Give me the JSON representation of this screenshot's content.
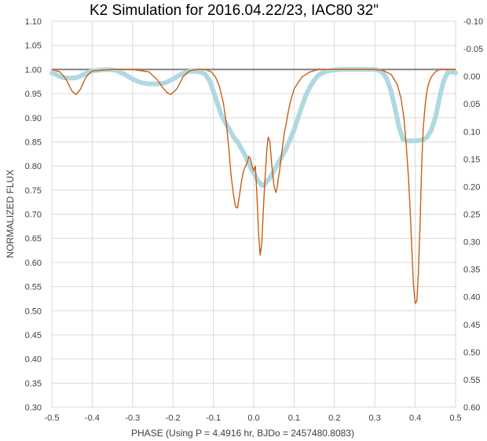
{
  "chart_data": {
    "type": "line",
    "title": "K2 Simulation for 2016.04.22/23, IAC80 32\"",
    "xlabel": "PHASE (Using P = 4.4916 hr, BJDo = 2457480.8083)",
    "ylabel": "NORMALIZED FLUX",
    "xlim": [
      -0.5,
      0.5
    ],
    "ylim": [
      0.3,
      1.1
    ],
    "y2lim": [
      0.6,
      -0.1
    ],
    "grid": true,
    "x_ticks": [
      "-0.5",
      "-0.4",
      "-0.3",
      "-0.2",
      "-0.1",
      "0.0",
      "0.1",
      "0.2",
      "0.3",
      "0.4",
      "0.5"
    ],
    "y_ticks": [
      "1.10",
      "1.05",
      "1.00",
      "0.95",
      "0.90",
      "0.85",
      "0.80",
      "0.75",
      "0.70",
      "0.65",
      "0.60",
      "0.55",
      "0.50",
      "0.45",
      "0.40",
      "0.35",
      "0.30"
    ],
    "y2_ticks": [
      "-0.10",
      "-0.05",
      "0.00",
      "0.05",
      "0.10",
      "0.15",
      "0.20",
      "0.25",
      "0.30",
      "0.35",
      "0.40",
      "0.45",
      "0.50",
      "0.55",
      "0.60"
    ],
    "series": [
      {
        "color": "#c55a11",
        "x": [
          -0.5,
          -0.48,
          -0.465,
          -0.45,
          -0.44,
          -0.43,
          -0.415,
          -0.4,
          -0.35,
          -0.3,
          -0.26,
          -0.24,
          -0.225,
          -0.215,
          -0.205,
          -0.19,
          -0.175,
          -0.16,
          -0.14,
          -0.12,
          -0.105,
          -0.095,
          -0.085,
          -0.075,
          -0.068,
          -0.062,
          -0.056,
          -0.05,
          -0.045,
          -0.04,
          -0.035,
          -0.03,
          -0.025,
          -0.02,
          -0.015,
          -0.012,
          -0.008,
          -0.004,
          0.0,
          0.004,
          0.008,
          0.012,
          0.016,
          0.02,
          0.024,
          0.027,
          0.03,
          0.033,
          0.036,
          0.04,
          0.045,
          0.05,
          0.055,
          0.058,
          0.061,
          0.064,
          0.067,
          0.07,
          0.073,
          0.076,
          0.08,
          0.085,
          0.09,
          0.1,
          0.12,
          0.14,
          0.16,
          0.18,
          0.2,
          0.25,
          0.3,
          0.32,
          0.34,
          0.355,
          0.365,
          0.372,
          0.378,
          0.383,
          0.388,
          0.392,
          0.396,
          0.4,
          0.404,
          0.408,
          0.412,
          0.416,
          0.42,
          0.425,
          0.43,
          0.435,
          0.44,
          0.445,
          0.45,
          0.46,
          0.47,
          0.48,
          0.5
        ],
        "y": [
          1.0,
          0.995,
          0.98,
          0.955,
          0.948,
          0.958,
          0.985,
          0.997,
          1.0,
          1.0,
          0.995,
          0.98,
          0.962,
          0.952,
          0.948,
          0.96,
          0.985,
          0.997,
          1.0,
          1.0,
          0.995,
          0.985,
          0.965,
          0.93,
          0.89,
          0.84,
          0.78,
          0.74,
          0.715,
          0.713,
          0.74,
          0.77,
          0.79,
          0.8,
          0.81,
          0.82,
          0.815,
          0.8,
          0.79,
          0.8,
          0.74,
          0.66,
          0.615,
          0.64,
          0.71,
          0.76,
          0.8,
          0.84,
          0.86,
          0.85,
          0.8,
          0.76,
          0.745,
          0.755,
          0.775,
          0.79,
          0.81,
          0.83,
          0.85,
          0.87,
          0.885,
          0.91,
          0.93,
          0.96,
          0.985,
          0.995,
          1.0,
          1.0,
          1.0,
          1.0,
          1.0,
          0.998,
          0.99,
          0.97,
          0.94,
          0.9,
          0.84,
          0.78,
          0.7,
          0.62,
          0.55,
          0.515,
          0.52,
          0.58,
          0.68,
          0.8,
          0.88,
          0.93,
          0.96,
          0.975,
          0.985,
          0.99,
          0.995,
          1.0,
          1.0,
          1.0,
          1.0
        ]
      },
      {
        "color": "#b0d8e0",
        "x": [
          -0.5,
          -0.49,
          -0.48,
          -0.47,
          -0.46,
          -0.45,
          -0.44,
          -0.43,
          -0.42,
          -0.41,
          -0.4,
          -0.38,
          -0.36,
          -0.34,
          -0.32,
          -0.3,
          -0.28,
          -0.26,
          -0.24,
          -0.22,
          -0.2,
          -0.18,
          -0.16,
          -0.14,
          -0.13,
          -0.12,
          -0.11,
          -0.1,
          -0.09,
          -0.08,
          -0.07,
          -0.06,
          -0.05,
          -0.04,
          -0.03,
          -0.02,
          -0.01,
          0.0,
          0.01,
          0.02,
          0.025,
          0.03,
          0.04,
          0.05,
          0.06,
          0.07,
          0.08,
          0.09,
          0.1,
          0.11,
          0.12,
          0.13,
          0.14,
          0.15,
          0.16,
          0.17,
          0.18,
          0.19,
          0.2,
          0.22,
          0.24,
          0.26,
          0.28,
          0.3,
          0.31,
          0.32,
          0.33,
          0.34,
          0.35,
          0.36,
          0.37,
          0.38,
          0.39,
          0.4,
          0.41,
          0.42,
          0.43,
          0.44,
          0.45,
          0.46,
          0.47,
          0.48,
          0.49,
          0.5
        ],
        "y": [
          0.993,
          0.99,
          0.985,
          0.983,
          0.982,
          0.982,
          0.983,
          0.986,
          0.99,
          0.994,
          0.997,
          0.999,
          1.0,
          0.998,
          0.99,
          0.98,
          0.973,
          0.97,
          0.97,
          0.972,
          0.98,
          0.99,
          0.996,
          0.996,
          0.994,
          0.99,
          0.978,
          0.955,
          0.93,
          0.905,
          0.89,
          0.875,
          0.86,
          0.85,
          0.835,
          0.82,
          0.8,
          0.785,
          0.77,
          0.76,
          0.76,
          0.765,
          0.775,
          0.79,
          0.805,
          0.82,
          0.835,
          0.855,
          0.875,
          0.9,
          0.925,
          0.948,
          0.965,
          0.978,
          0.988,
          0.993,
          0.996,
          0.998,
          0.999,
          1.0,
          1.0,
          1.0,
          1.0,
          1.0,
          0.998,
          0.993,
          0.98,
          0.955,
          0.92,
          0.88,
          0.855,
          0.852,
          0.852,
          0.852,
          0.853,
          0.855,
          0.86,
          0.875,
          0.9,
          0.94,
          0.975,
          0.993,
          0.995,
          0.993
        ]
      }
    ],
    "reference_line": {
      "y": 1.0,
      "color": "#808080"
    }
  }
}
